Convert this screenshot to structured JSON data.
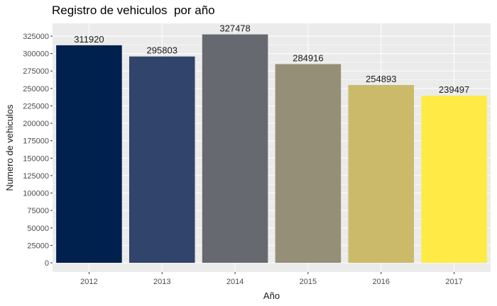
{
  "chart_data": {
    "type": "bar",
    "title": "Registro de vehiculos  por año",
    "xlabel": "Año",
    "ylabel": "Numero de vehiculos",
    "categories": [
      "2012",
      "2013",
      "2014",
      "2015",
      "2016",
      "2017"
    ],
    "values": [
      311920,
      295803,
      327478,
      284916,
      254893,
      239497
    ],
    "data_labels": [
      "311920",
      "295803",
      "327478",
      "284916",
      "254893",
      "239497"
    ],
    "ylim": [
      0,
      335000
    ],
    "yticks": [
      0,
      25000,
      50000,
      75000,
      100000,
      125000,
      150000,
      175000,
      200000,
      225000,
      250000,
      275000,
      300000,
      325000
    ],
    "grid": true,
    "legend": "none",
    "colors": [
      "#00204d",
      "#31446b",
      "#666970",
      "#958f78",
      "#cbba69",
      "#ffea46"
    ],
    "panel_background": "#ebebeb",
    "grid_color": "#ffffff"
  }
}
